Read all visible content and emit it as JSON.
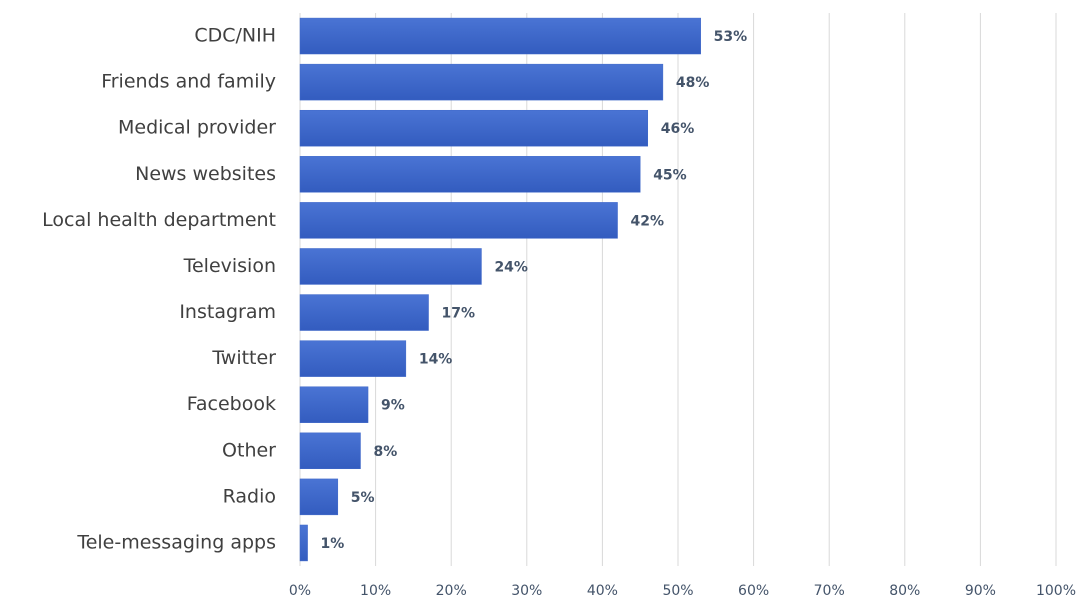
{
  "chart_data": {
    "type": "bar",
    "orientation": "horizontal",
    "categories": [
      "CDC/NIH",
      "Friends and family",
      "Medical provider",
      "News websites",
      "Local health department",
      "Television",
      "Instagram",
      "Twitter",
      "Facebook",
      "Other",
      "Radio",
      "Tele-messaging apps"
    ],
    "values": [
      53,
      48,
      46,
      45,
      42,
      24,
      17,
      14,
      9,
      8,
      5,
      1
    ],
    "value_labels": [
      "53%",
      "48%",
      "46%",
      "45%",
      "42%",
      "24%",
      "17%",
      "14%",
      "9%",
      "8%",
      "5%",
      "1%"
    ],
    "color": "#3f68c9",
    "xlim": [
      0,
      100
    ],
    "xticks": [
      {
        "value": 0,
        "label": "0%"
      },
      {
        "value": 10,
        "label": "10%"
      },
      {
        "value": 20,
        "label": "20%"
      },
      {
        "value": 30,
        "label": "30%"
      },
      {
        "value": 40,
        "label": "40%"
      },
      {
        "value": 50,
        "label": "50%"
      },
      {
        "value": 60,
        "label": "60%"
      },
      {
        "value": 70,
        "label": "70%"
      },
      {
        "value": 80,
        "label": "80%"
      },
      {
        "value": 90,
        "label": "90%"
      },
      {
        "value": 100,
        "label": "100%"
      }
    ],
    "grid": true
  }
}
